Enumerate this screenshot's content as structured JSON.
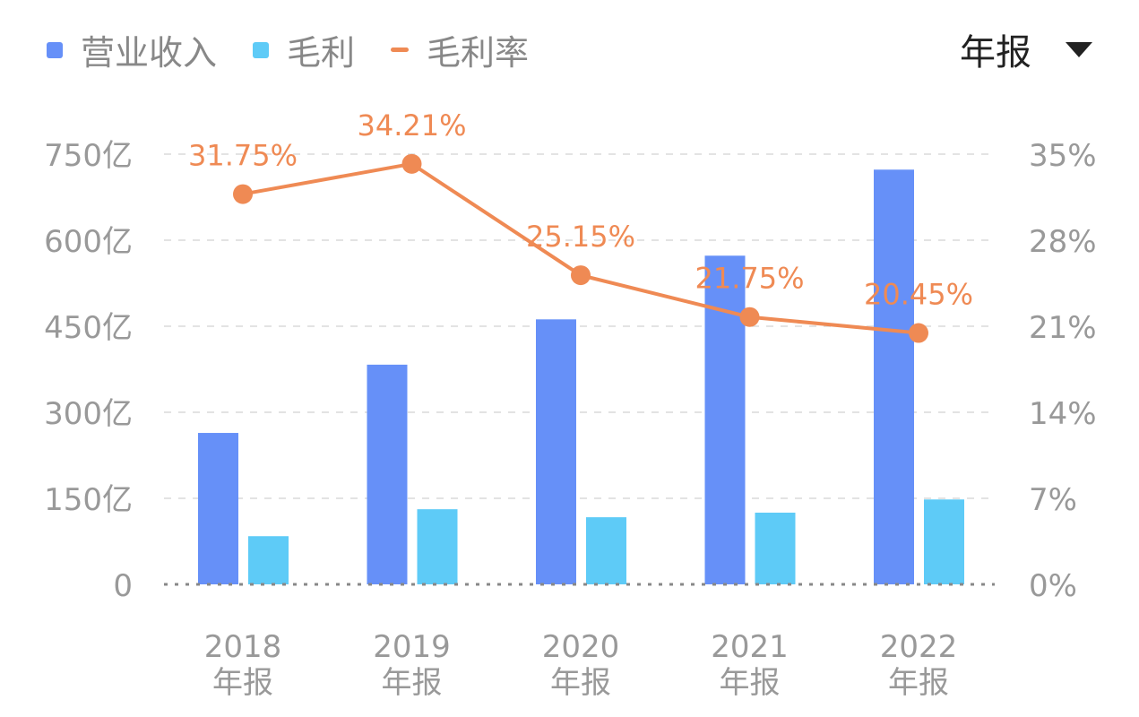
{
  "legend": [
    {
      "label": "营业收入",
      "color": "#6690f8",
      "shape": "square"
    },
    {
      "label": "毛利",
      "color": "#5ecbf7",
      "shape": "square"
    },
    {
      "label": "毛利率",
      "color": "#ef8a54",
      "shape": "line"
    }
  ],
  "period_selector": {
    "label": "年报",
    "icon": "triangle-down-icon"
  },
  "chart_data": {
    "type": "bar",
    "categories": [
      [
        "2018",
        "年报"
      ],
      [
        "2019",
        "年报"
      ],
      [
        "2020",
        "年报"
      ],
      [
        "2021",
        "年报"
      ],
      [
        "2022",
        "年报"
      ]
    ],
    "series": [
      {
        "name": "营业收入",
        "type": "bar",
        "axis": "left",
        "unit": "亿",
        "values": [
          264,
          383,
          462,
          573,
          723
        ]
      },
      {
        "name": "毛利",
        "type": "bar",
        "axis": "left",
        "unit": "亿",
        "values": [
          84,
          131,
          117,
          125,
          148
        ]
      },
      {
        "name": "毛利率",
        "type": "line",
        "axis": "right",
        "unit": "%",
        "values": [
          31.75,
          34.21,
          25.15,
          21.75,
          20.45
        ],
        "labels": [
          "31.75%",
          "34.21%",
          "25.15%",
          "21.75%",
          "20.45%"
        ]
      }
    ],
    "y_left": {
      "ylim": [
        0,
        750
      ],
      "ticks": [
        "0",
        "150亿",
        "300亿",
        "450亿",
        "600亿",
        "750亿"
      ]
    },
    "y_right": {
      "ylim": [
        0,
        35
      ],
      "ticks": [
        "0%",
        "7%",
        "14%",
        "21%",
        "28%",
        "35%"
      ]
    },
    "grid": true,
    "legend_position": "top-left"
  }
}
